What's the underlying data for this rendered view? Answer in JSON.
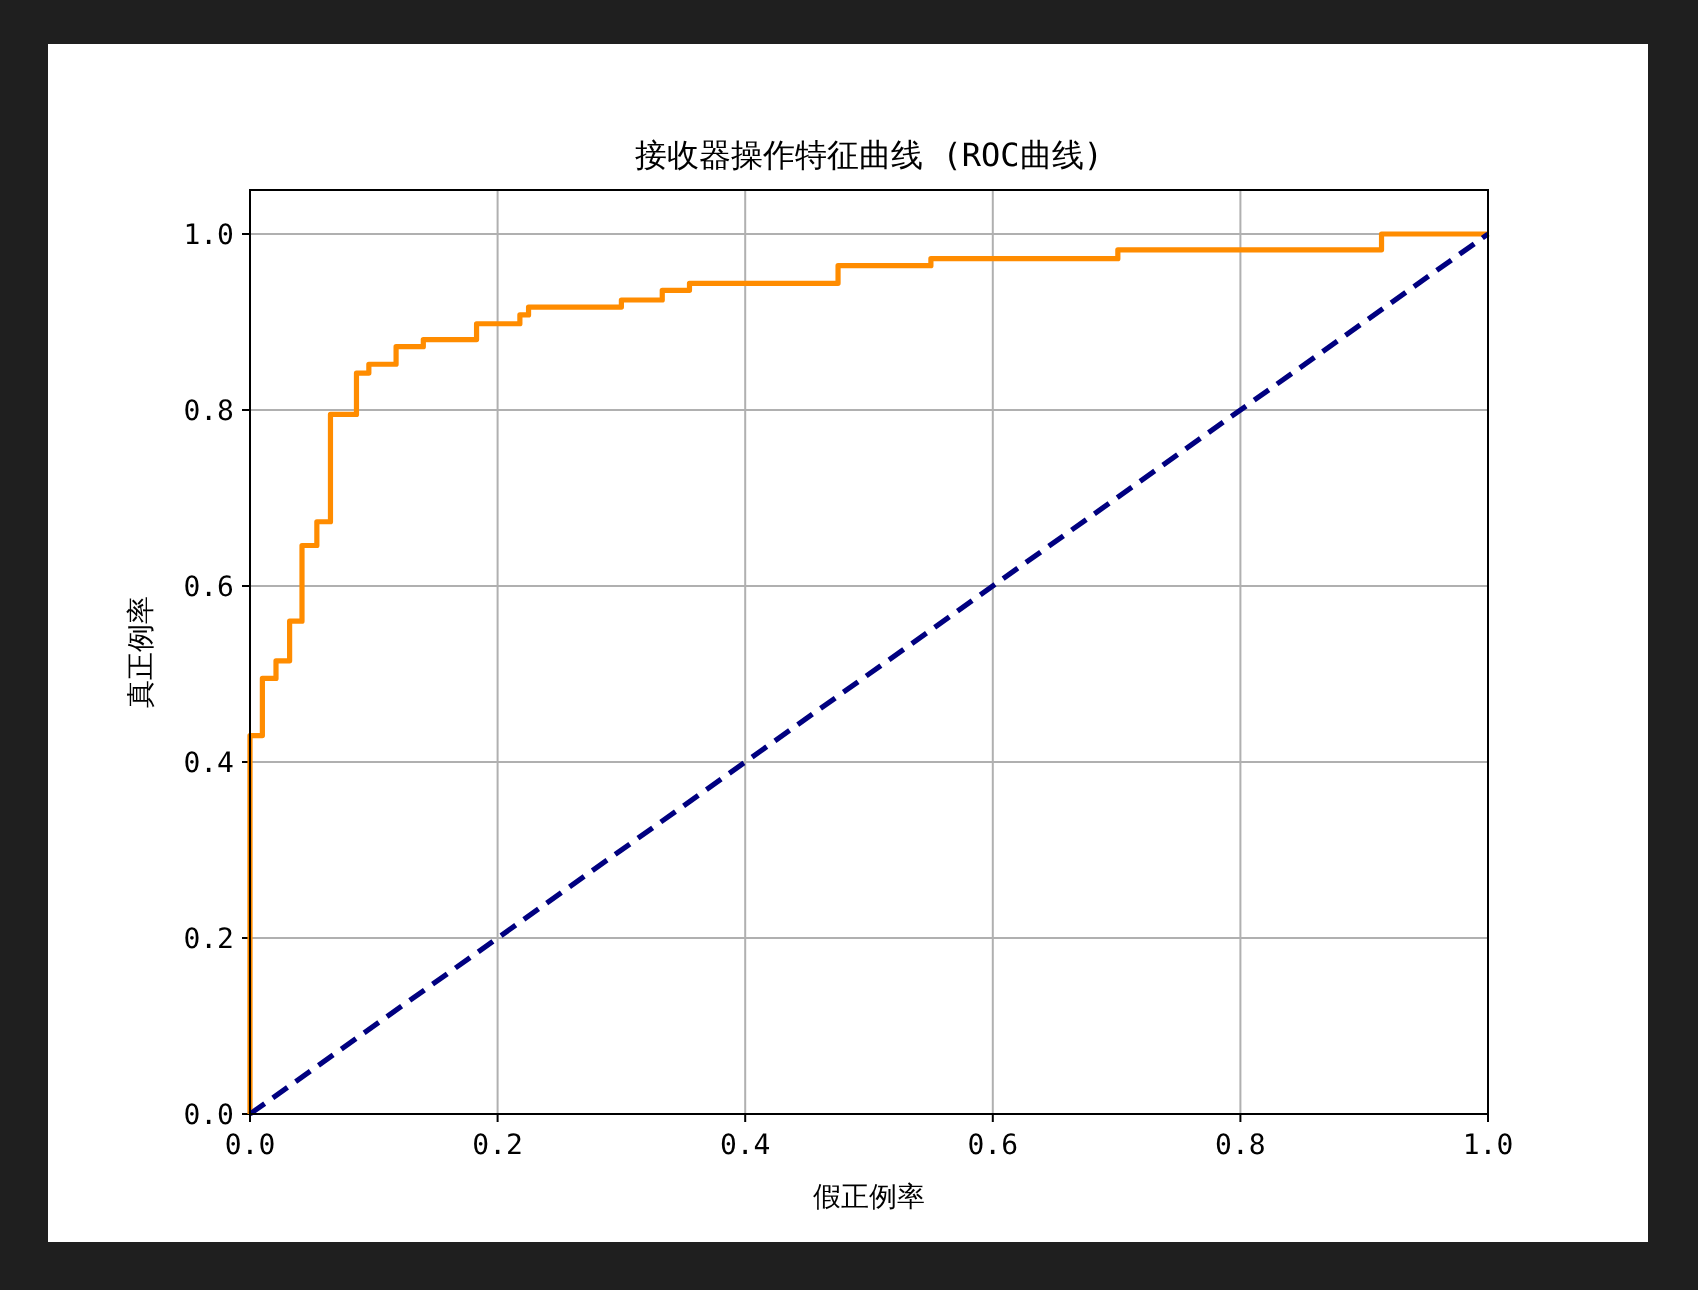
{
  "chart_data": {
    "type": "line",
    "title": "接收器操作特征曲线 (ROC曲线)",
    "xlabel": "假正例率",
    "ylabel": "真正例率",
    "series": [
      {
        "type": "step",
        "color": "#ff8c00",
        "line_style": "solid",
        "x": [
          0,
          0,
          0.01,
          0.021,
          0.032,
          0.042,
          0.054,
          0.065,
          0.086,
          0.096,
          0.118,
          0.14,
          0.183,
          0.218,
          0.225,
          0.3,
          0.333,
          0.355,
          0.475,
          0.55,
          0.701,
          0.914,
          1.0
        ],
        "values": [
          0,
          0.43,
          0.495,
          0.515,
          0.56,
          0.646,
          0.673,
          0.795,
          0.842,
          0.852,
          0.872,
          0.88,
          0.898,
          0.908,
          0.917,
          0.925,
          0.936,
          0.944,
          0.964,
          0.972,
          0.982,
          1.0,
          1.0
        ]
      },
      {
        "type": "line",
        "color": "#000080",
        "line_style": "dashed",
        "x": [
          0,
          1
        ],
        "values": [
          0,
          1
        ]
      }
    ],
    "xlim": [
      0,
      1
    ],
    "ylim": [
      0,
      1.05
    ],
    "xticks": [
      {
        "value": 0,
        "label": "0.0"
      },
      {
        "value": 0.2,
        "label": "0.2"
      },
      {
        "value": 0.4,
        "label": "0.4"
      },
      {
        "value": 0.6,
        "label": "0.6"
      },
      {
        "value": 0.8,
        "label": "0.8"
      },
      {
        "value": 1,
        "label": "1.0"
      }
    ],
    "yticks": [
      {
        "value": 0,
        "label": "0.0"
      },
      {
        "value": 0.2,
        "label": "0.2"
      },
      {
        "value": 0.4,
        "label": "0.4"
      },
      {
        "value": 0.6,
        "label": "0.6"
      },
      {
        "value": 0.8,
        "label": "0.8"
      },
      {
        "value": 1,
        "label": "1.0"
      }
    ],
    "grid": true
  }
}
